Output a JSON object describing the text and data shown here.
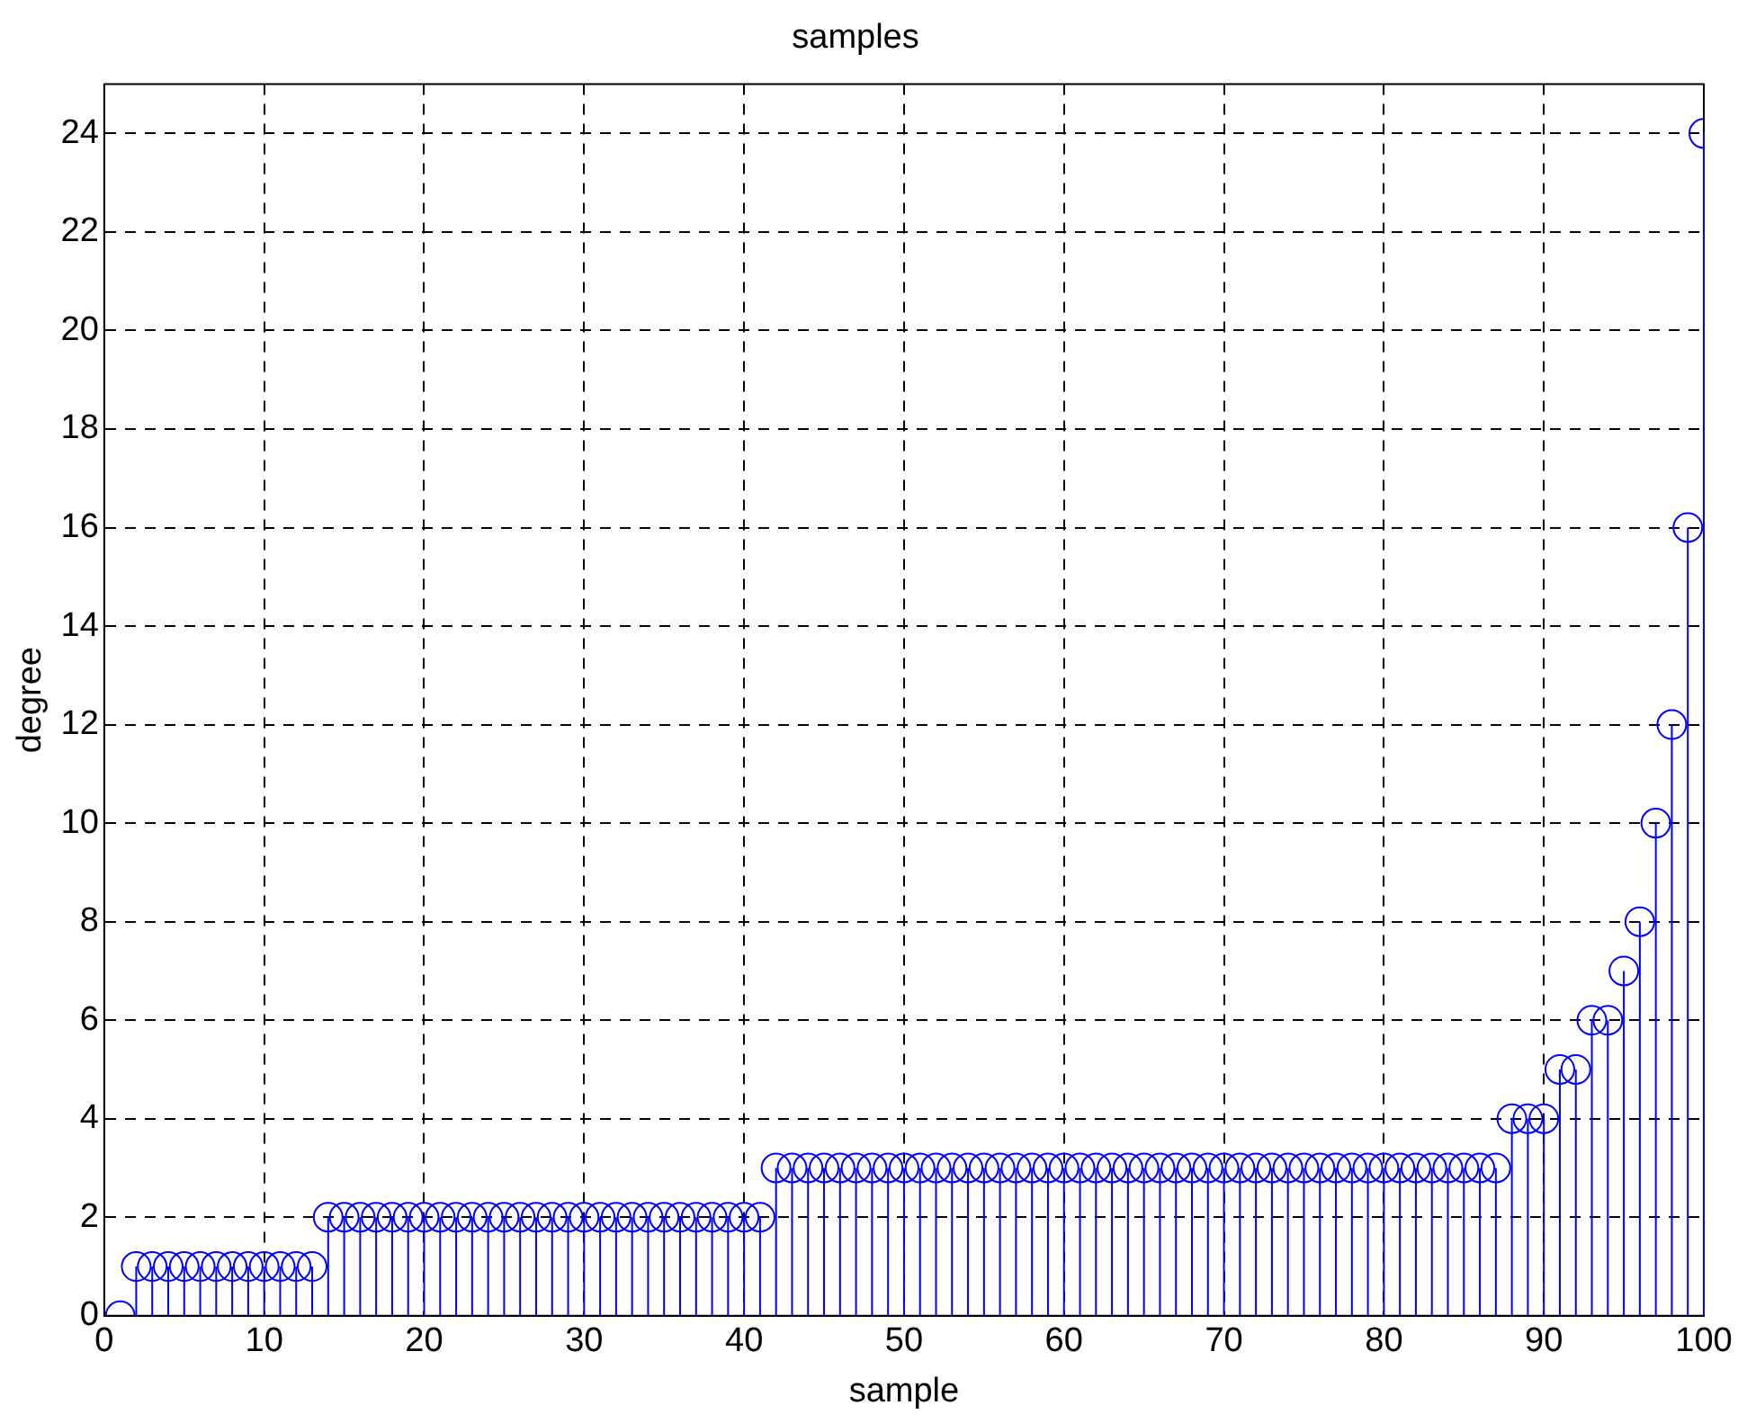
{
  "chart_data": {
    "type": "lollipop",
    "title": "samples",
    "xlabel": "sample",
    "ylabel": "degree",
    "x": [
      1,
      2,
      3,
      4,
      5,
      6,
      7,
      8,
      9,
      10,
      11,
      12,
      13,
      14,
      15,
      16,
      17,
      18,
      19,
      20,
      21,
      22,
      23,
      24,
      25,
      26,
      27,
      28,
      29,
      30,
      31,
      32,
      33,
      34,
      35,
      36,
      37,
      38,
      39,
      40,
      41,
      42,
      43,
      44,
      45,
      46,
      47,
      48,
      49,
      50,
      51,
      52,
      53,
      54,
      55,
      56,
      57,
      58,
      59,
      60,
      61,
      62,
      63,
      64,
      65,
      66,
      67,
      68,
      69,
      70,
      71,
      72,
      73,
      74,
      75,
      76,
      77,
      78,
      79,
      80,
      81,
      82,
      83,
      84,
      85,
      86,
      87,
      88,
      89,
      90,
      91,
      92,
      93,
      94,
      95,
      96,
      97,
      98,
      99,
      100
    ],
    "values": [
      0,
      1,
      1,
      1,
      1,
      1,
      1,
      1,
      1,
      1,
      1,
      1,
      1,
      2,
      2,
      2,
      2,
      2,
      2,
      2,
      2,
      2,
      2,
      2,
      2,
      2,
      2,
      2,
      2,
      2,
      2,
      2,
      2,
      2,
      2,
      2,
      2,
      2,
      2,
      2,
      2,
      3,
      3,
      3,
      3,
      3,
      3,
      3,
      3,
      3,
      3,
      3,
      3,
      3,
      3,
      3,
      3,
      3,
      3,
      3,
      3,
      3,
      3,
      3,
      3,
      3,
      3,
      3,
      3,
      3,
      3,
      3,
      3,
      3,
      3,
      3,
      3,
      3,
      3,
      3,
      3,
      3,
      3,
      3,
      3,
      3,
      3,
      4,
      4,
      4,
      5,
      5,
      6,
      6,
      7,
      8,
      10,
      12,
      16,
      24
    ],
    "color": "#0000ff",
    "marker": "circle",
    "grid": true,
    "line_style": "dashed",
    "xlim": [
      0,
      100
    ],
    "xticks": [
      0,
      10,
      20,
      30,
      40,
      50,
      60,
      70,
      80,
      90,
      100
    ],
    "ylim": [
      0,
      25
    ],
    "yticks": [
      0,
      2,
      4,
      6,
      8,
      10,
      12,
      14,
      16,
      18,
      20,
      22,
      24
    ]
  }
}
